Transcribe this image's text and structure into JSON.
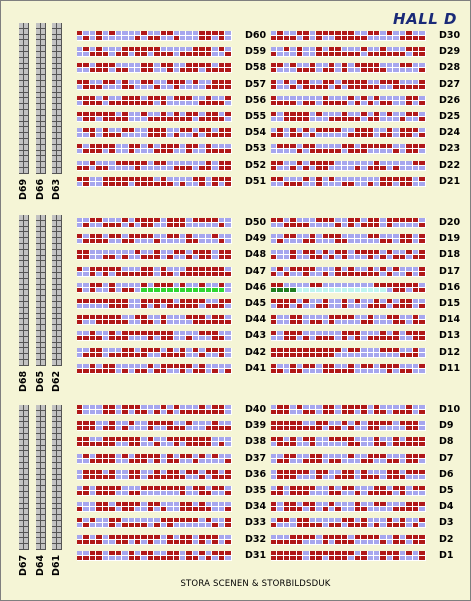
{
  "hall_title": "HALL D",
  "stage_label": "STORA SCENEN & STORBILDSDUK",
  "side_columns": {
    "upper": [
      "D69",
      "D66",
      "D63"
    ],
    "middle": [
      "D68",
      "D65",
      "D62"
    ],
    "lower": [
      "D67",
      "D64",
      "D61"
    ]
  },
  "rows": {
    "left": [
      [
        "D60",
        "D59",
        "D58",
        "D57",
        "D56",
        "D55",
        "D54",
        "D53",
        "D52",
        "D51"
      ],
      [
        "D50",
        "D49",
        "D48",
        "D47",
        "D46",
        "D45",
        "D44",
        "D43",
        "D42",
        "D41"
      ],
      [
        "D40",
        "D39",
        "D38",
        "D37",
        "D36",
        "D35",
        "D34",
        "D33",
        "D32",
        "D31"
      ]
    ],
    "right": [
      [
        "D30",
        "D29",
        "D28",
        "D27",
        "D26",
        "D25",
        "D24",
        "D23",
        "D22",
        "D21"
      ],
      [
        "D20",
        "D19",
        "D18",
        "D17",
        "D16",
        "D15",
        "D14",
        "D13",
        "D12",
        "D11"
      ],
      [
        "D10",
        "D9",
        "D8",
        "D7",
        "D6",
        "D5",
        "D4",
        "D3",
        "D2",
        "D1"
      ]
    ]
  },
  "colors": {
    "taken": "#b01818",
    "free": "#a6a6ee",
    "selected": "#2fd62f",
    "selected_dark": "#1f7e1f",
    "highlight": "#bff5f0",
    "side_seat": "#c2c2c2",
    "background": "#f5f5d6",
    "title": "#1a2a78"
  }
}
